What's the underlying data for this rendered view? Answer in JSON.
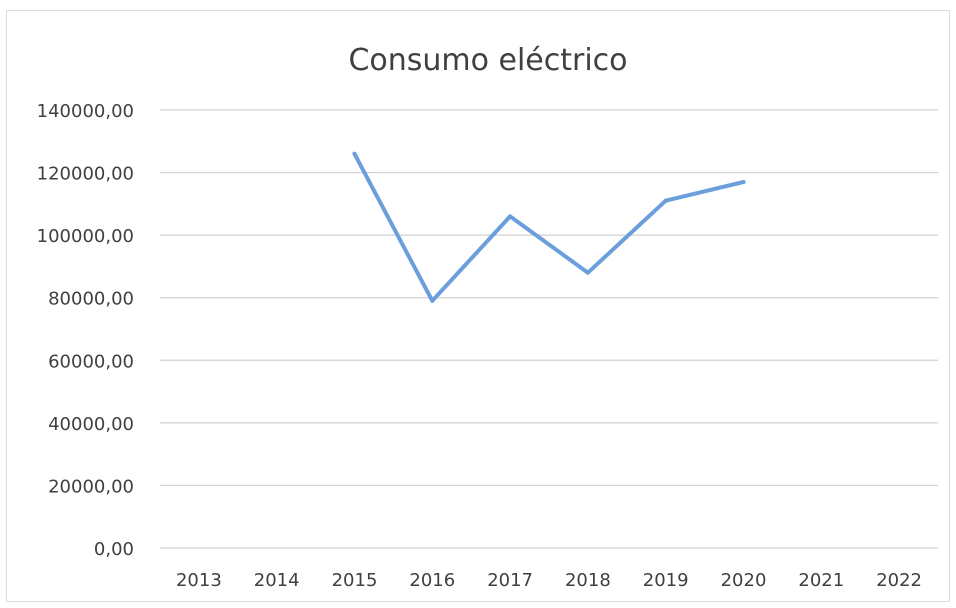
{
  "chart_data": {
    "type": "line",
    "title": "Consumo eléctrico",
    "xlabel": "",
    "ylabel": "",
    "categories": [
      "2013",
      "2014",
      "2015",
      "2016",
      "2017",
      "2018",
      "2019",
      "2020",
      "2021",
      "2022"
    ],
    "y_ticks": [
      "0,00",
      "20000,00",
      "40000,00",
      "60000,00",
      "80000,00",
      "100000,00",
      "120000,00",
      "140000,00"
    ],
    "ylim": [
      0,
      140000
    ],
    "grid": true,
    "legend": "none",
    "series": [
      {
        "color": "#6a9fdc",
        "values": [
          null,
          null,
          126000,
          79000,
          106000,
          88000,
          111000,
          117000,
          null,
          null
        ]
      }
    ]
  }
}
